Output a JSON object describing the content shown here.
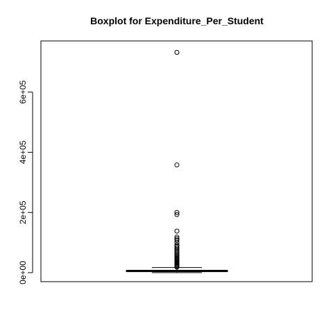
{
  "chart_data": {
    "type": "boxplot",
    "title": "Boxplot for  Expenditure_Per_Student",
    "xlabel": "",
    "ylabel": "",
    "ylim": [
      -30000,
      770000
    ],
    "yticks": [
      {
        "value": 0,
        "label": "0e+00"
      },
      {
        "value": 200000,
        "label": "2e+05"
      },
      {
        "value": 400000,
        "label": "4e+05"
      },
      {
        "value": 600000,
        "label": "6e+05"
      }
    ],
    "box": {
      "min": 0,
      "q1": 3500,
      "median": 5500,
      "q3": 7500,
      "whisker_high": 17000
    },
    "outliers": [
      732000,
      358000,
      200000,
      193000,
      138000,
      118000,
      113000,
      108000,
      100000,
      92000,
      88000,
      84000,
      79000,
      75000,
      71000,
      67000,
      62000,
      58000,
      55000,
      51000,
      47000,
      44000,
      41000,
      38000,
      35000,
      32000,
      29000,
      26000,
      23000,
      20000,
      18500
    ],
    "grid": false,
    "legend": "none"
  }
}
